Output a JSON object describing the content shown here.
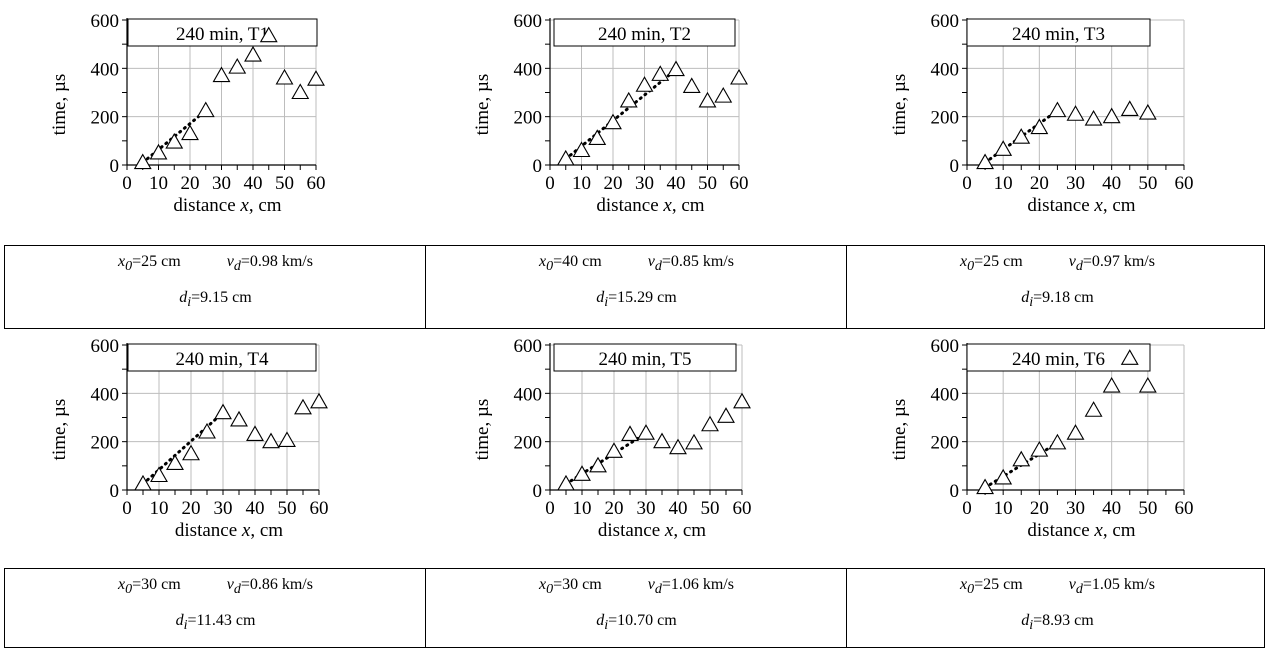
{
  "chart_data": [
    {
      "type": "scatter",
      "tag": "240 min, T1",
      "xlabel": "distance x, cm",
      "ylabel": "time, µs",
      "xlim": [
        0,
        60
      ],
      "ylim": [
        0,
        600
      ],
      "xticks": [
        "0",
        "10",
        "20",
        "30",
        "40",
        "50",
        "60"
      ],
      "yticks": [
        "0",
        "200",
        "400",
        "600"
      ],
      "grid": true,
      "points": [
        [
          5,
          10
        ],
        [
          10,
          50
        ],
        [
          15,
          95
        ],
        [
          20,
          130
        ],
        [
          25,
          225
        ],
        [
          30,
          370
        ],
        [
          35,
          405
        ],
        [
          40,
          455
        ],
        [
          45,
          535
        ],
        [
          50,
          360
        ],
        [
          55,
          300
        ],
        [
          60,
          355
        ]
      ],
      "fit": [
        [
          5,
          10
        ],
        [
          25,
          225
        ]
      ],
      "info": {
        "x0": "=25 cm",
        "vd": "=0.98 km/s",
        "di": "=9.15 cm"
      }
    },
    {
      "type": "scatter",
      "tag": "240 min, T2",
      "xlabel": "distance x, cm",
      "ylabel": "time, µs",
      "xlim": [
        0,
        60
      ],
      "ylim": [
        0,
        600
      ],
      "xticks": [
        "0",
        "10",
        "20",
        "30",
        "40",
        "50",
        "60"
      ],
      "yticks": [
        "0",
        "200",
        "400",
        "600"
      ],
      "grid": true,
      "points": [
        [
          5,
          25
        ],
        [
          10,
          60
        ],
        [
          15,
          110
        ],
        [
          20,
          175
        ],
        [
          25,
          265
        ],
        [
          30,
          330
        ],
        [
          35,
          375
        ],
        [
          40,
          395
        ],
        [
          45,
          325
        ],
        [
          50,
          265
        ],
        [
          55,
          285
        ],
        [
          60,
          360
        ]
      ],
      "fit": [
        [
          5,
          25
        ],
        [
          40,
          395
        ]
      ],
      "info": {
        "x0": "=40 cm",
        "vd": "=0.85 km/s",
        "di": "=15.29 cm"
      }
    },
    {
      "type": "scatter",
      "tag": "240 min, T3",
      "xlabel": "distance x, cm",
      "ylabel": "time, µs",
      "xlim": [
        0,
        60
      ],
      "ylim": [
        0,
        600
      ],
      "xticks": [
        "0",
        "10",
        "20",
        "30",
        "40",
        "50",
        "60"
      ],
      "yticks": [
        "0",
        "200",
        "400",
        "600"
      ],
      "grid": true,
      "points": [
        [
          5,
          10
        ],
        [
          10,
          65
        ],
        [
          15,
          115
        ],
        [
          20,
          155
        ],
        [
          25,
          225
        ],
        [
          30,
          210
        ],
        [
          35,
          190
        ],
        [
          40,
          200
        ],
        [
          45,
          230
        ],
        [
          50,
          215
        ]
      ],
      "fit": [
        [
          5,
          10
        ],
        [
          25,
          225
        ]
      ],
      "info": {
        "x0": "=25 cm",
        "vd": "=0.97 km/s",
        "di": "=9.18 cm"
      }
    },
    {
      "type": "scatter",
      "tag": "240 min, T4",
      "xlabel": "distance x, cm",
      "ylabel": "time, µs",
      "xlim": [
        0,
        60
      ],
      "ylim": [
        0,
        600
      ],
      "xticks": [
        "0",
        "10",
        "20",
        "30",
        "40",
        "50",
        "60"
      ],
      "yticks": [
        "0",
        "200",
        "400",
        "600"
      ],
      "grid": true,
      "points": [
        [
          5,
          25
        ],
        [
          10,
          60
        ],
        [
          15,
          110
        ],
        [
          20,
          150
        ],
        [
          25,
          240
        ],
        [
          30,
          320
        ],
        [
          35,
          290
        ],
        [
          40,
          230
        ],
        [
          45,
          200
        ],
        [
          50,
          205
        ],
        [
          55,
          340
        ],
        [
          60,
          365
        ]
      ],
      "fit": [
        [
          5,
          25
        ],
        [
          30,
          320
        ]
      ],
      "info": {
        "x0": "=30 cm",
        "vd": "=0.86 km/s",
        "di": "=11.43 cm"
      }
    },
    {
      "type": "scatter",
      "tag": "240 min, T5",
      "xlabel": "distance x, cm",
      "ylabel": "time, µs",
      "xlim": [
        0,
        60
      ],
      "ylim": [
        0,
        600
      ],
      "xticks": [
        "0",
        "10",
        "20",
        "30",
        "40",
        "50",
        "60"
      ],
      "yticks": [
        "0",
        "200",
        "400",
        "600"
      ],
      "grid": true,
      "points": [
        [
          5,
          25
        ],
        [
          10,
          65
        ],
        [
          15,
          100
        ],
        [
          20,
          160
        ],
        [
          25,
          230
        ],
        [
          30,
          235
        ],
        [
          35,
          200
        ],
        [
          40,
          175
        ],
        [
          45,
          195
        ],
        [
          50,
          270
        ],
        [
          55,
          305
        ],
        [
          60,
          365
        ]
      ],
      "fit": [
        [
          5,
          25
        ],
        [
          30,
          235
        ]
      ],
      "info": {
        "x0": "=30 cm",
        "vd": "=1.06 km/s",
        "di": "=10.70 cm"
      }
    },
    {
      "type": "scatter",
      "tag": "240 min, T6",
      "xlabel": "distance x, cm",
      "ylabel": "time, µs",
      "xlim": [
        0,
        60
      ],
      "ylim": [
        0,
        600
      ],
      "xticks": [
        "0",
        "10",
        "20",
        "30",
        "40",
        "50",
        "60"
      ],
      "yticks": [
        "0",
        "200",
        "400",
        "600"
      ],
      "grid": true,
      "points": [
        [
          5,
          10
        ],
        [
          10,
          50
        ],
        [
          15,
          125
        ],
        [
          20,
          165
        ],
        [
          25,
          195
        ],
        [
          30,
          235
        ],
        [
          35,
          330
        ],
        [
          40,
          430
        ],
        [
          45,
          545
        ],
        [
          50,
          430
        ]
      ],
      "fit": [
        [
          5,
          10
        ],
        [
          25,
          195
        ]
      ],
      "info": {
        "x0": "=25 cm",
        "vd": "=1.05 km/s",
        "di": "=8.93 cm"
      }
    }
  ]
}
